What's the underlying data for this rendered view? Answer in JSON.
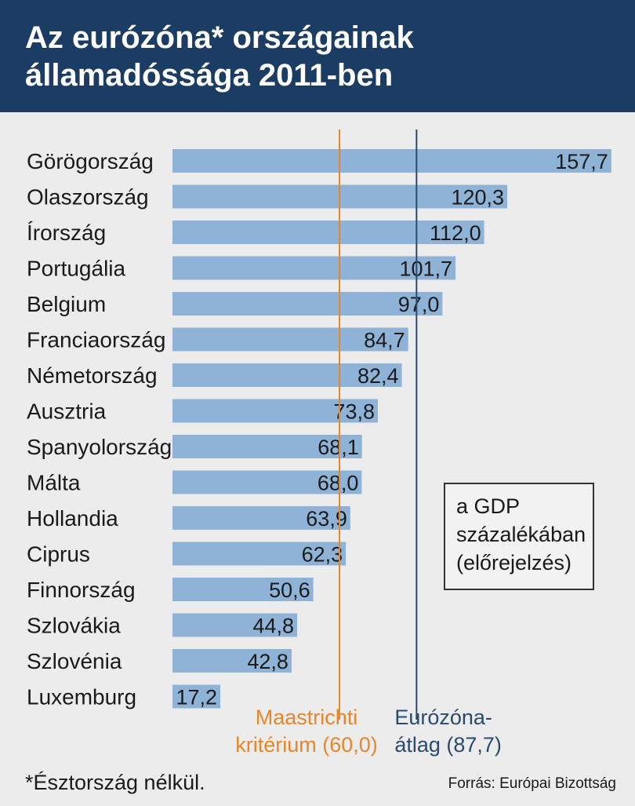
{
  "header": {
    "title_line1": "Az eurózóna* országainak",
    "title_line2": "államadóssága 2011-ben"
  },
  "chart_data": {
    "type": "bar",
    "orientation": "horizontal",
    "title": "Az eurózóna* országainak államadóssága 2011-ben",
    "unit_note": [
      "a GDP",
      "százalékában",
      "(előrejelzés)"
    ],
    "categories": [
      "Görögország",
      "Olaszország",
      "Írország",
      "Portugália",
      "Belgium",
      "Franciaország",
      "Németország",
      "Ausztria",
      "Spanyolország",
      "Málta",
      "Hollandia",
      "Ciprus",
      "Finnország",
      "Szlovákia",
      "Szlovénia",
      "Luxemburg"
    ],
    "values": [
      157.7,
      120.3,
      112.0,
      101.7,
      97.0,
      84.7,
      82.4,
      73.8,
      68.1,
      68.0,
      63.9,
      62.3,
      50.6,
      44.8,
      42.8,
      17.2
    ],
    "value_labels": [
      "157,7",
      "120,3",
      "112,0",
      "101,7",
      "97,0",
      "84,7",
      "82,4",
      "73,8",
      "68,1",
      "68,0",
      "63,9",
      "62,3",
      "50,6",
      "44,8",
      "42,8",
      "17,2"
    ],
    "xlim": [
      0,
      160
    ],
    "reference_lines": [
      {
        "name": "maastricht",
        "value": 60.0,
        "label_line1": "Maastrichti",
        "label_line2": "kritérium (60,0)",
        "color": "#e8862a"
      },
      {
        "name": "eurozone-average",
        "value": 87.7,
        "label_line1": "Eurózóna-",
        "label_line2": "átlag (87,7)",
        "color": "#2a4a6e"
      }
    ],
    "bar_color": "#8fb3d6",
    "label_color": "#1a1a1a"
  },
  "footnote": "*Észtország nélkül.",
  "source": "Forrás: Európai Bizottság",
  "colors": {
    "header_bg": "#1b3c63",
    "background": "#ececec"
  }
}
